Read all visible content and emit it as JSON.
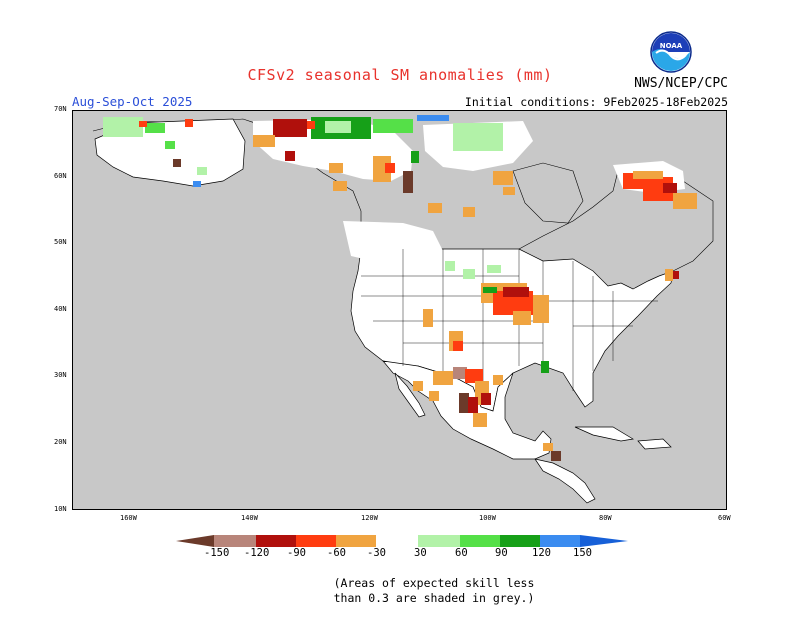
{
  "header": {
    "title": "CFSv2 seasonal SM anomalies (mm)",
    "period": "Aug-Sep-Oct 2025",
    "initial_conditions": "Initial conditions: 9Feb2025-18Feb2025",
    "agency": "NWS/NCEP/CPC",
    "logo_text": "NOAA"
  },
  "map": {
    "lat_labels": [
      "70N",
      "60N",
      "50N",
      "40N",
      "30N",
      "20N",
      "10N"
    ],
    "lon_labels": [
      "160W",
      "140W",
      "120W",
      "100W",
      "80W",
      "60W"
    ],
    "mask_color": "#c8c8c8",
    "land_color": "#ffffff"
  },
  "colorbar": {
    "labels": [
      "-150",
      "-120",
      "-90",
      "-60",
      "-30",
      "30",
      "60",
      "90",
      "120",
      "150"
    ],
    "colors": [
      "#6b3a2a",
      "#b8857a",
      "#b0100c",
      "#ff3c10",
      "#f0a440",
      "#ffffff",
      "#b2f2a8",
      "#55e048",
      "#16a018",
      "#3b8cf0",
      "#1760d8"
    ]
  },
  "footnote": {
    "line1": "(Areas of expected skill less",
    "line2": "than 0.3 are shaded in grey.)"
  }
}
